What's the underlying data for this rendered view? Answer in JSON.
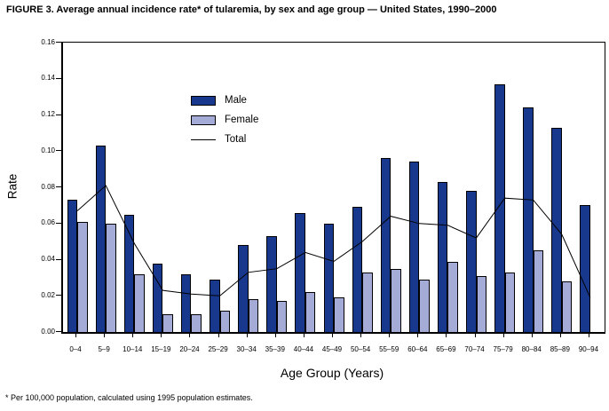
{
  "figure": {
    "title": "FIGURE 3. Average annual incidence rate* of tularemia, by sex and age group — United States, 1990–2000",
    "footnote": "* Per 100,000 population, calculated using 1995 population estimates."
  },
  "chart_data": {
    "type": "bar",
    "title": "FIGURE 3. Average annual incidence rate* of tularemia, by sex and age group — United States, 1990–2000",
    "xlabel": "Age Group (Years)",
    "ylabel": "Rate",
    "ylim": [
      0,
      0.16
    ],
    "ytick_step": 0.02,
    "grid": false,
    "legend_position": "inside-upper-left",
    "categories": [
      "0–4",
      "5–9",
      "10–14",
      "15–19",
      "20–24",
      "25–29",
      "30–34",
      "35–39",
      "40–44",
      "45–49",
      "50–54",
      "55–59",
      "60–64",
      "65–69",
      "70–74",
      "75–79",
      "80–84",
      "85–89",
      "90–94"
    ],
    "series": [
      {
        "name": "Male",
        "type": "bar",
        "color": "#17388c",
        "values": [
          0.073,
          0.103,
          0.065,
          0.038,
          0.032,
          0.029,
          0.048,
          0.053,
          0.066,
          0.06,
          0.069,
          0.096,
          0.094,
          0.083,
          0.078,
          0.137,
          0.124,
          0.113,
          0.07
        ]
      },
      {
        "name": "Female",
        "type": "bar",
        "color": "#a3abd6",
        "values": [
          0.061,
          0.06,
          0.032,
          0.01,
          0.01,
          0.012,
          0.018,
          0.017,
          0.022,
          0.019,
          0.033,
          0.035,
          0.029,
          0.039,
          0.031,
          0.033,
          0.045,
          0.028,
          0
        ]
      },
      {
        "name": "Total",
        "type": "line",
        "color": "#000000",
        "values": [
          0.067,
          0.081,
          0.049,
          0.023,
          0.021,
          0.02,
          0.033,
          0.035,
          0.044,
          0.039,
          0.05,
          0.064,
          0.06,
          0.059,
          0.052,
          0.074,
          0.073,
          0.054,
          0.019
        ]
      }
    ]
  }
}
